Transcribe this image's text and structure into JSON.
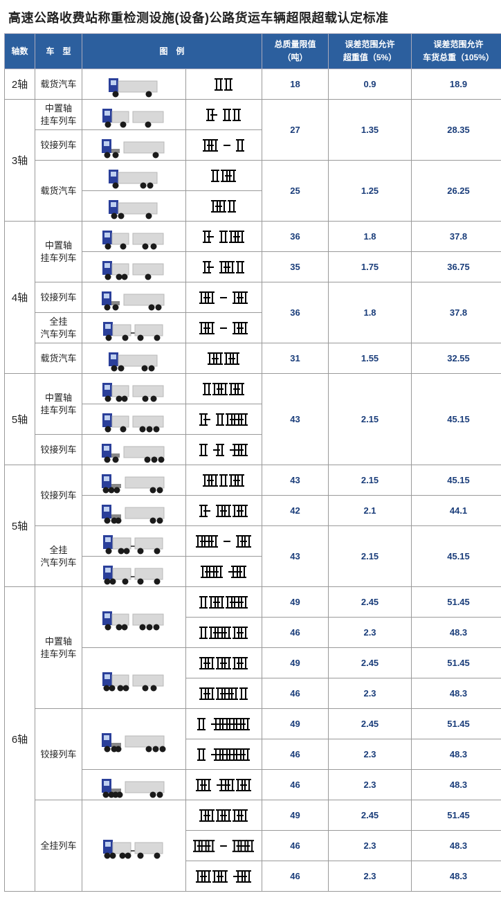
{
  "title": "高速公路收费站称重检测设施(设备)公路货运车辆超限超载认定标准",
  "colors": {
    "header_bg": "#2c5f9e",
    "header_fg": "#ffffff",
    "border": "#999999",
    "value_fg": "#1a3d7a",
    "truck_cab": "#2a3f9a",
    "truck_body": "#d8d8d8",
    "truck_body_stroke": "#b8b8b8",
    "wheel": "#1a1a1a",
    "axle_stroke": "#000000"
  },
  "columns": [
    {
      "key": "axles",
      "label": "轴数"
    },
    {
      "key": "type",
      "label": "车　型"
    },
    {
      "key": "illus",
      "label": "图　例",
      "colspan": 2
    },
    {
      "key": "limit",
      "label": "总质量限值\n（吨）"
    },
    {
      "key": "over5",
      "label": "误差范围允许\n超重值（5%）"
    },
    {
      "key": "total105",
      "label": "误差范围允许\n车货总重（105%）"
    }
  ],
  "groups": [
    {
      "axle_label": "2轴",
      "axle_span": 1,
      "types": [
        {
          "label": "载货汽车",
          "type_span": 1,
          "rows": [
            {
              "truck": "rigid_1_1",
              "axle": "A_1_1",
              "limit": "18",
              "over": "0.9",
              "total": "18.9"
            }
          ]
        }
      ]
    },
    {
      "axle_label": "3轴",
      "axle_span": 4,
      "types": [
        {
          "label": "中置轴\n挂车列车",
          "type_span": 1,
          "share_with_next": false,
          "rows": [
            {
              "truck": "center_1_1_1",
              "axle": "A_1g_1_1",
              "merge_down": true
            }
          ]
        },
        {
          "label": "铰接列车",
          "type_span": 1,
          "rows": [
            {
              "truck": "semi_1_1_1",
              "axle": "A_11_g_1",
              "limit": "27",
              "over": "1.35",
              "total": "28.35",
              "merged_from_above": true
            }
          ]
        },
        {
          "label": "载货汽车",
          "type_span": 2,
          "rows": [
            {
              "truck": "rigid_1_2",
              "axle": "A_1_11",
              "merge_down": true
            },
            {
              "truck": "rigid_2_1",
              "axle": "A_11_1",
              "limit": "25",
              "over": "1.25",
              "total": "26.25",
              "merged_from_above": true
            }
          ]
        }
      ]
    },
    {
      "axle_label": "4轴",
      "axle_span": 5,
      "types": [
        {
          "label": "中置轴\n挂车列车",
          "type_span": 2,
          "rows": [
            {
              "truck": "center_1_1_2",
              "axle": "A_1g_1_11",
              "limit": "36",
              "over": "1.8",
              "total": "37.8"
            },
            {
              "truck": "center_1_2_1",
              "axle": "A_1g_11_1",
              "limit": "35",
              "over": "1.75",
              "total": "36.75"
            }
          ]
        },
        {
          "label": "铰接列车",
          "type_span": 1,
          "rows": [
            {
              "truck": "semi_1_1_2",
              "axle": "A_11_g_11",
              "merge_down": true
            }
          ]
        },
        {
          "label": "全挂\n汽车列车",
          "type_span": 1,
          "rows": [
            {
              "truck": "full_1_1_1_1",
              "axle": "A_1g1_g_1g1",
              "limit": "36",
              "over": "1.8",
              "total": "37.8",
              "merged_from_above": true
            }
          ]
        },
        {
          "label": "载货汽车",
          "type_span": 1,
          "rows": [
            {
              "truck": "rigid_2_2",
              "axle": "A_11_11",
              "limit": "31",
              "over": "1.55",
              "total": "32.55"
            }
          ]
        }
      ]
    },
    {
      "axle_label": "5轴",
      "axle_span": 3,
      "types": [
        {
          "label": "中置轴\n挂车列车",
          "type_span": 2,
          "rows": [
            {
              "truck": "center_1_2_2",
              "axle": "A_1_11_11",
              "merge_down": true
            },
            {
              "truck": "center_1_1_3",
              "axle": "A_1g_1_111",
              "merged_mid": true
            }
          ]
        },
        {
          "label": "铰接列车",
          "type_span": 1,
          "rows": [
            {
              "truck": "semi_1_1_3",
              "axle": "A_1_g1_g11",
              "limit": "43",
              "over": "2.15",
              "total": "45.15",
              "merged_from_above": true
            }
          ]
        }
      ]
    },
    {
      "axle_label": "5轴",
      "axle_span": 4,
      "types": [
        {
          "label": "铰接列车",
          "type_span": 2,
          "rows": [
            {
              "truck": "semi_2_1_2",
              "axle": "A_11_1_11",
              "limit": "43",
              "over": "2.15",
              "total": "45.15"
            },
            {
              "truck": "semi_1_2_2",
              "axle": "A_1g_11_11",
              "limit": "42",
              "over": "2.1",
              "total": "44.1"
            }
          ]
        },
        {
          "label": "全挂\n汽车列车",
          "type_span": 2,
          "rows": [
            {
              "truck": "full_1_2_1_1",
              "axle": "A_1g11_g_1g1",
              "merge_down": true
            },
            {
              "truck": "full_2_1_1_1",
              "axle": "A_11g1_g1g1",
              "limit": "43",
              "over": "2.15",
              "total": "45.15",
              "merged_from_above": true
            }
          ]
        }
      ]
    },
    {
      "axle_label": "6轴",
      "axle_span": 10,
      "types": [
        {
          "label": "中置轴\n挂车列车",
          "type_span": 4,
          "rows": [
            {
              "truck": "center_1_2_3a",
              "axle": "A_1_11_111",
              "limit": "49",
              "over": "2.45",
              "total": "51.45",
              "truck_span": 2
            },
            {
              "truck": null,
              "axle": "A_1_111_11",
              "limit": "46",
              "over": "2.3",
              "total": "48.3"
            },
            {
              "truck": "center_2_2_2",
              "axle": "A_11_11_11",
              "limit": "49",
              "over": "2.45",
              "total": "51.45",
              "truck_span": 2
            },
            {
              "truck": null,
              "axle": "A_11_111_1",
              "limit": "46",
              "over": "2.3",
              "total": "48.3"
            }
          ]
        },
        {
          "label": "铰接列车",
          "type_span": 3,
          "rows": [
            {
              "truck": "semi_1_2_3",
              "axle": "A_1_g11g111",
              "limit": "49",
              "over": "2.45",
              "total": "51.45",
              "truck_span": 2
            },
            {
              "truck": null,
              "axle": "A_1_g111g11",
              "limit": "46",
              "over": "2.3",
              "total": "48.3"
            },
            {
              "truck": "semi_2_2_2",
              "axle": "A_11_g11_11",
              "limit": "46",
              "over": "2.3",
              "total": "48.3"
            }
          ]
        },
        {
          "label": "全挂列车",
          "type_span": 3,
          "rows": [
            {
              "truck": "full_2_2_1_1",
              "axle": "A_11_11_1g1",
              "limit": "49",
              "over": "2.45",
              "total": "51.45",
              "truck_span": 3
            },
            {
              "truck": null,
              "axle": "A_11g1_g_11g1",
              "limit": "46",
              "over": "2.3",
              "total": "48.3"
            },
            {
              "truck": null,
              "axle": "A_11_11_g11",
              "limit": "46",
              "over": "2.3",
              "total": "48.3"
            }
          ]
        }
      ]
    }
  ],
  "truck_defs": {
    "rigid_1_1": {
      "units": [
        {
          "cab": true,
          "len": 70,
          "wheels": [
            10,
            58
          ]
        }
      ]
    },
    "rigid_1_2": {
      "units": [
        {
          "cab": true,
          "len": 70,
          "wheels": [
            10,
            50,
            60
          ]
        }
      ]
    },
    "rigid_2_1": {
      "units": [
        {
          "cab": true,
          "len": 70,
          "wheels": [
            8,
            18,
            58
          ]
        }
      ]
    },
    "rigid_2_2": {
      "units": [
        {
          "cab": true,
          "len": 70,
          "wheels": [
            8,
            18,
            52,
            62
          ]
        }
      ]
    },
    "center_1_1_1": {
      "units": [
        {
          "cab": true,
          "len": 38,
          "wheels": [
            8,
            30
          ]
        },
        {
          "cab": false,
          "len": 44,
          "wheels": [
            22
          ]
        }
      ]
    },
    "center_1_1_2": {
      "units": [
        {
          "cab": true,
          "len": 38,
          "wheels": [
            8,
            30
          ]
        },
        {
          "cab": false,
          "len": 44,
          "wheels": [
            18,
            30
          ]
        }
      ]
    },
    "center_1_2_1": {
      "units": [
        {
          "cab": true,
          "len": 38,
          "wheels": [
            8,
            24,
            32
          ]
        },
        {
          "cab": false,
          "len": 44,
          "wheels": [
            22
          ]
        }
      ]
    },
    "center_1_2_2": {
      "units": [
        {
          "cab": true,
          "len": 38,
          "wheels": [
            8,
            24,
            32
          ]
        },
        {
          "cab": false,
          "len": 44,
          "wheels": [
            18,
            30
          ]
        }
      ]
    },
    "center_1_1_3": {
      "units": [
        {
          "cab": true,
          "len": 38,
          "wheels": [
            8,
            30
          ]
        },
        {
          "cab": false,
          "len": 44,
          "wheels": [
            14,
            24,
            34
          ]
        }
      ]
    },
    "center_1_2_3a": {
      "units": [
        {
          "cab": true,
          "len": 38,
          "wheels": [
            8,
            24,
            32
          ]
        },
        {
          "cab": false,
          "len": 44,
          "wheels": [
            14,
            24,
            34
          ]
        }
      ]
    },
    "center_2_2_2": {
      "units": [
        {
          "cab": true,
          "len": 38,
          "wheels": [
            6,
            14,
            26,
            34
          ]
        },
        {
          "cab": false,
          "len": 44,
          "wheels": [
            18,
            30
          ]
        }
      ]
    },
    "semi_1_1_1": {
      "units": [
        {
          "cab": true,
          "len": 26,
          "wheels": [
            8,
            20
          ],
          "tractor": true
        },
        {
          "cab": false,
          "len": 58,
          "wheels": [
            46
          ]
        }
      ]
    },
    "semi_1_1_2": {
      "units": [
        {
          "cab": true,
          "len": 26,
          "wheels": [
            8,
            20
          ],
          "tractor": true
        },
        {
          "cab": false,
          "len": 58,
          "wheels": [
            40,
            50
          ]
        }
      ]
    },
    "semi_1_1_3": {
      "units": [
        {
          "cab": true,
          "len": 26,
          "wheels": [
            8,
            20
          ],
          "tractor": true
        },
        {
          "cab": false,
          "len": 58,
          "wheels": [
            34,
            44,
            54
          ]
        }
      ]
    },
    "semi_2_1_2": {
      "units": [
        {
          "cab": true,
          "len": 28,
          "wheels": [
            6,
            14,
            22
          ],
          "tractor": true
        },
        {
          "cab": false,
          "len": 56,
          "wheels": [
            40,
            50
          ]
        }
      ]
    },
    "semi_1_2_2": {
      "units": [
        {
          "cab": true,
          "len": 28,
          "wheels": [
            8,
            18,
            24
          ],
          "tractor": true
        },
        {
          "cab": false,
          "len": 56,
          "wheels": [
            40,
            50
          ]
        }
      ]
    },
    "semi_1_2_3": {
      "units": [
        {
          "cab": true,
          "len": 28,
          "wheels": [
            8,
            18,
            24
          ],
          "tractor": true
        },
        {
          "cab": false,
          "len": 56,
          "wheels": [
            34,
            44,
            54
          ]
        }
      ]
    },
    "semi_2_2_2": {
      "units": [
        {
          "cab": true,
          "len": 28,
          "wheels": [
            6,
            14,
            20,
            26
          ],
          "tractor": true
        },
        {
          "cab": false,
          "len": 56,
          "wheels": [
            40,
            50
          ]
        }
      ]
    },
    "full_1_1_1_1": {
      "units": [
        {
          "cab": true,
          "len": 40,
          "wheels": [
            8,
            32
          ]
        },
        {
          "cab": false,
          "len": 40,
          "wheels": [
            8,
            32
          ],
          "drawbar": true
        }
      ]
    },
    "full_1_2_1_1": {
      "units": [
        {
          "cab": true,
          "len": 40,
          "wheels": [
            8,
            26,
            34
          ]
        },
        {
          "cab": false,
          "len": 40,
          "wheels": [
            8,
            32
          ],
          "drawbar": true
        }
      ]
    },
    "full_2_1_1_1": {
      "units": [
        {
          "cab": true,
          "len": 40,
          "wheels": [
            6,
            14,
            32
          ]
        },
        {
          "cab": false,
          "len": 40,
          "wheels": [
            8,
            32
          ],
          "drawbar": true
        }
      ]
    },
    "full_2_2_1_1": {
      "units": [
        {
          "cab": true,
          "len": 40,
          "wheels": [
            6,
            14,
            28,
            36
          ]
        },
        {
          "cab": false,
          "len": 40,
          "wheels": [
            8,
            32
          ],
          "drawbar": true
        }
      ]
    }
  },
  "axle_diag_style": {
    "stroke": "#000000",
    "stroke_width": 2,
    "tick_h": 8,
    "double_gap": 3
  }
}
